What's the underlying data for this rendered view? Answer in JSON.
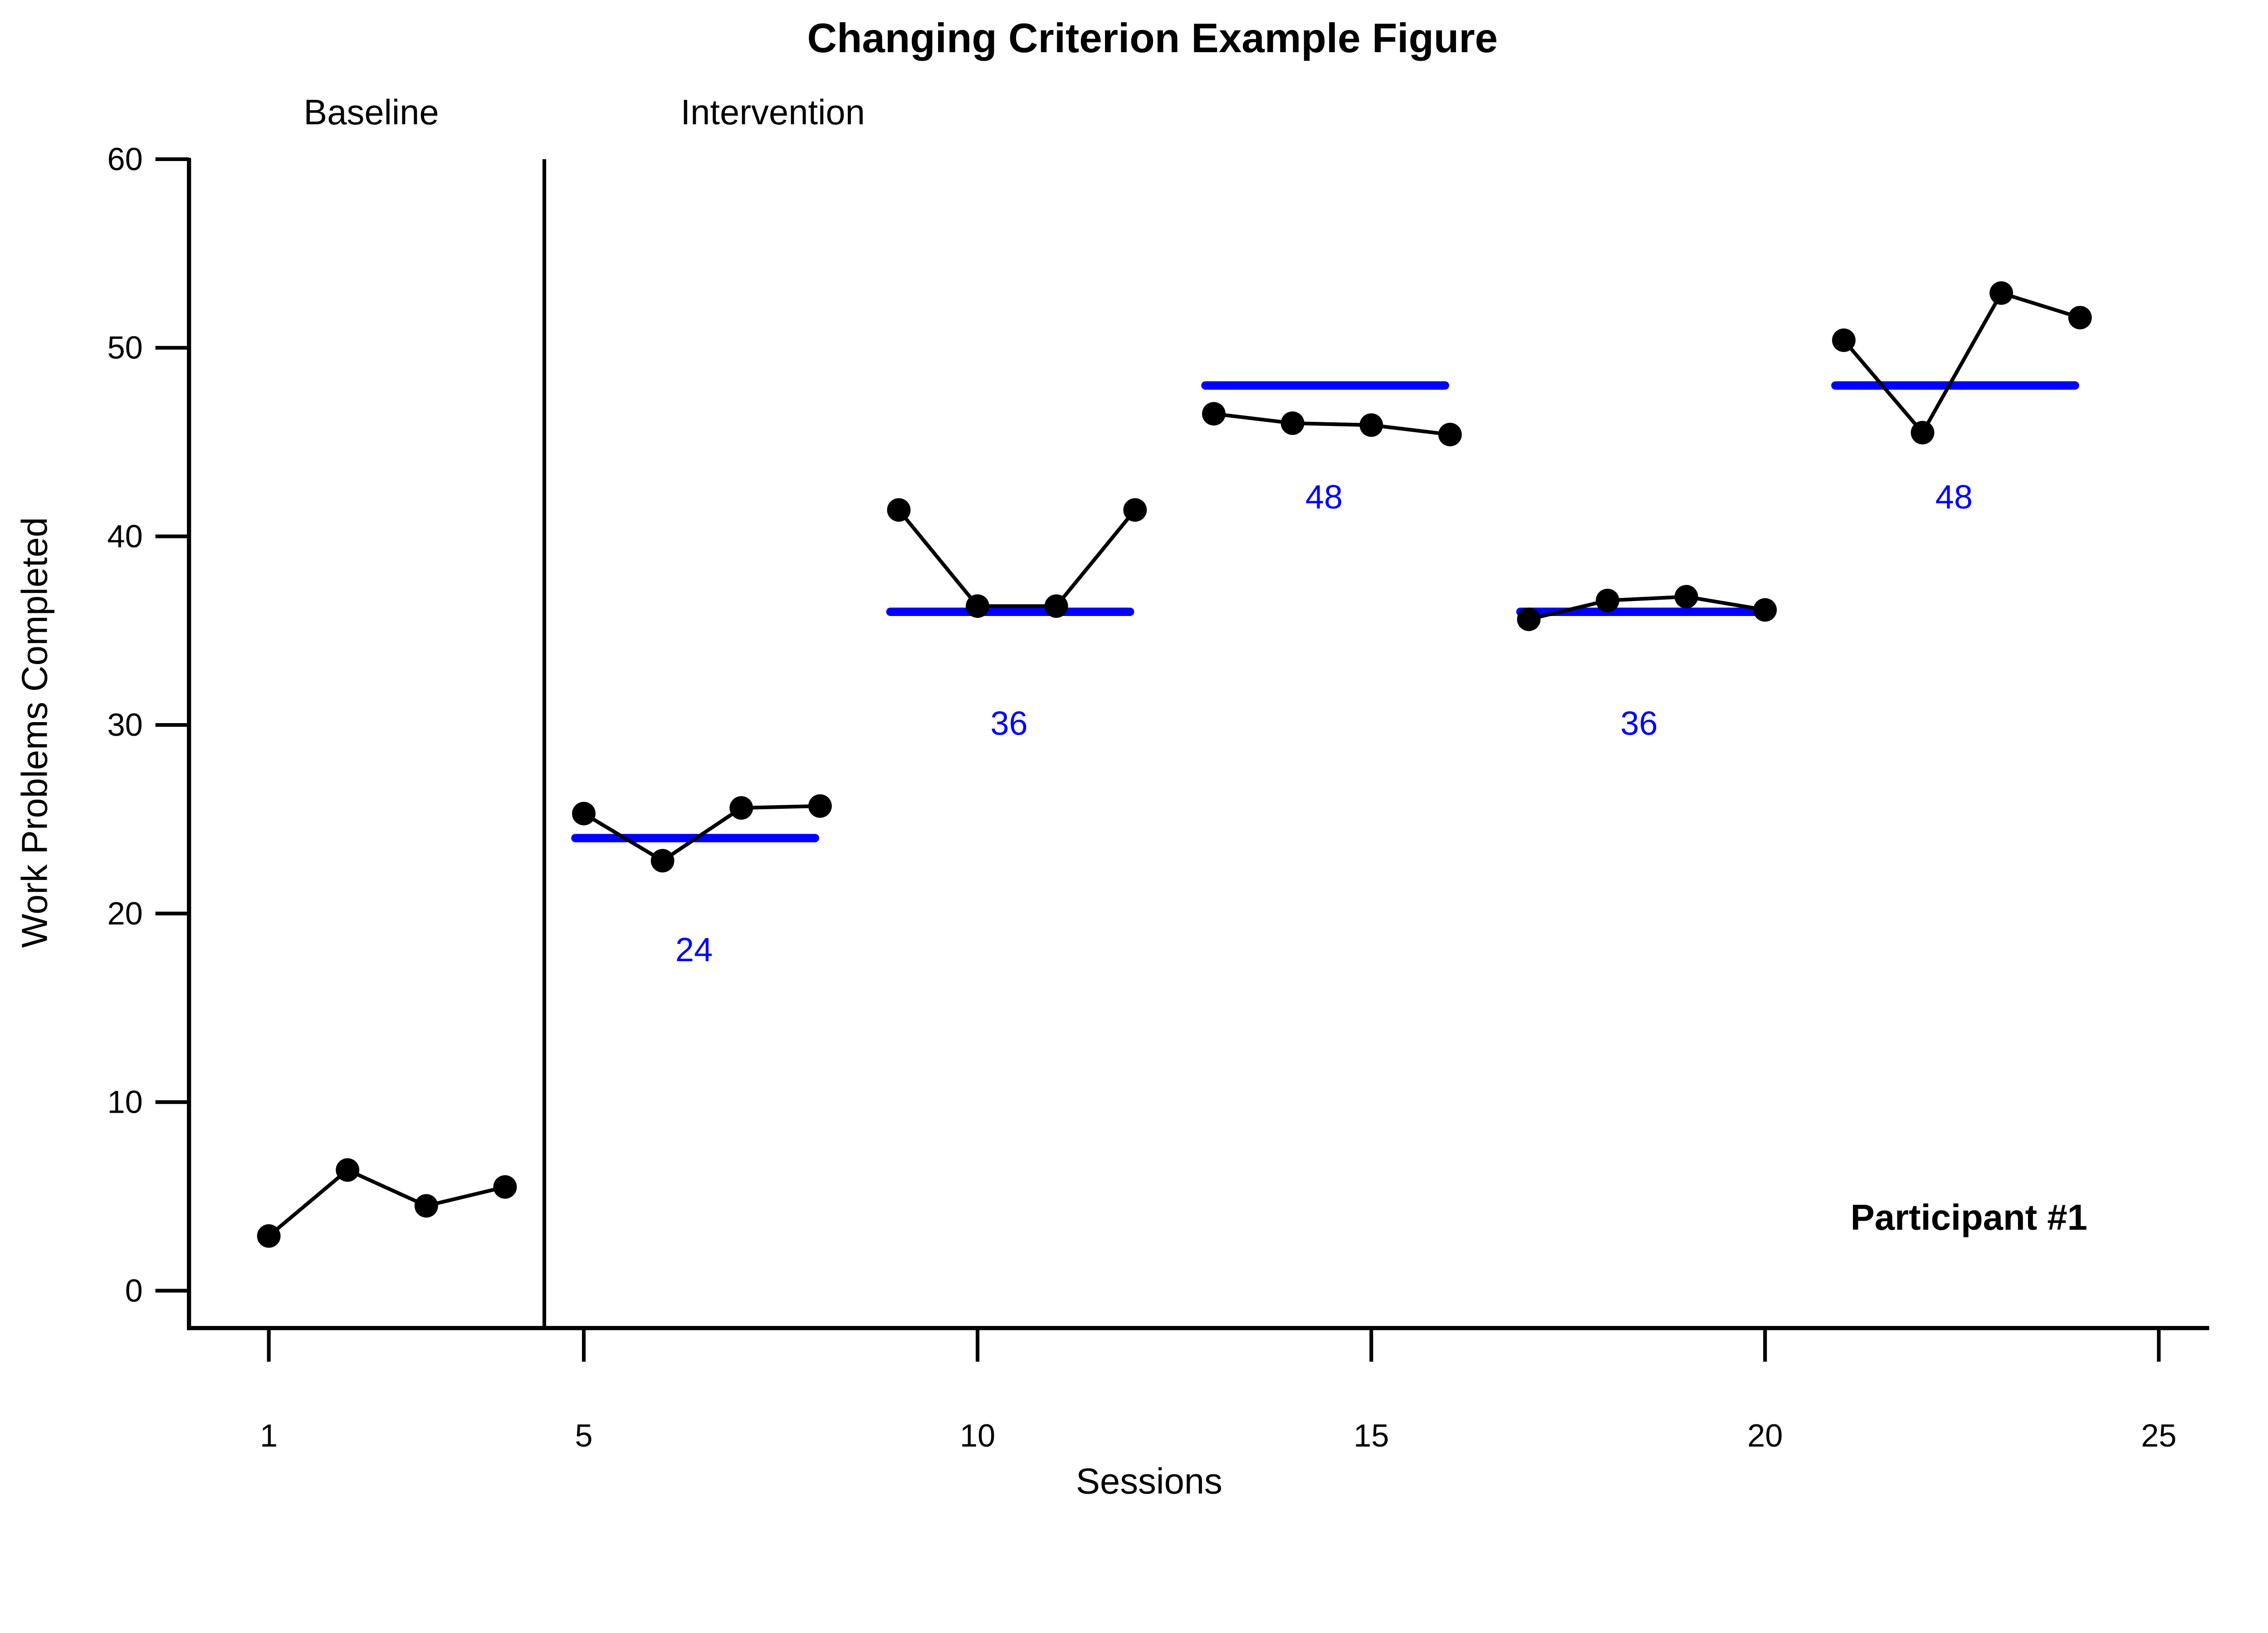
{
  "title": "Changing Criterion Example Figure",
  "colors": {
    "data": "#000000",
    "criterion": "#0000ff",
    "axis": "#000000",
    "background": "#ffffff"
  },
  "chart_data": {
    "type": "line",
    "title": "Changing Criterion Example Figure",
    "xlabel": "Sessions",
    "ylabel": "Work Problems Completed",
    "xticks": [
      1,
      5,
      10,
      15,
      20,
      25
    ],
    "yticks": [
      0,
      10,
      20,
      30,
      40,
      50,
      60
    ],
    "xlim": [
      0,
      26
    ],
    "ylim": [
      -2,
      60
    ],
    "grid": false,
    "legend": "none",
    "phase_divider_x": 4.5,
    "phase_labels": [
      {
        "text": "Baseline",
        "x": 2.3,
        "y": 62
      },
      {
        "text": "Intervention",
        "x": 7.4,
        "y": 62
      }
    ],
    "annotation": {
      "text": "Participant #1",
      "x": 22.6,
      "y": 3.8
    },
    "phases": [
      {
        "name": "baseline",
        "criterion": null,
        "sessions": [
          1,
          2,
          3,
          4
        ],
        "values": [
          2.9,
          6.4,
          4.5,
          5.5
        ]
      },
      {
        "name": "criterion-24",
        "criterion": 24,
        "sessions": [
          5,
          6,
          7,
          8
        ],
        "values": [
          25.3,
          22.8,
          25.6,
          25.7
        ]
      },
      {
        "name": "criterion-36",
        "criterion": 36,
        "sessions": [
          9,
          10,
          11,
          12
        ],
        "values": [
          41.4,
          36.3,
          36.3,
          41.4
        ]
      },
      {
        "name": "criterion-48",
        "criterion": 48,
        "sessions": [
          13,
          14,
          15,
          16
        ],
        "values": [
          46.5,
          46.0,
          45.9,
          45.4
        ]
      },
      {
        "name": "criterion-36-2",
        "criterion": 36,
        "sessions": [
          17,
          18,
          19,
          20
        ],
        "values": [
          35.6,
          36.6,
          36.8,
          36.1
        ]
      },
      {
        "name": "criterion-48-2",
        "criterion": 48,
        "sessions": [
          21,
          22,
          23,
          24
        ],
        "values": [
          50.4,
          45.5,
          52.9,
          51.6
        ]
      }
    ]
  }
}
